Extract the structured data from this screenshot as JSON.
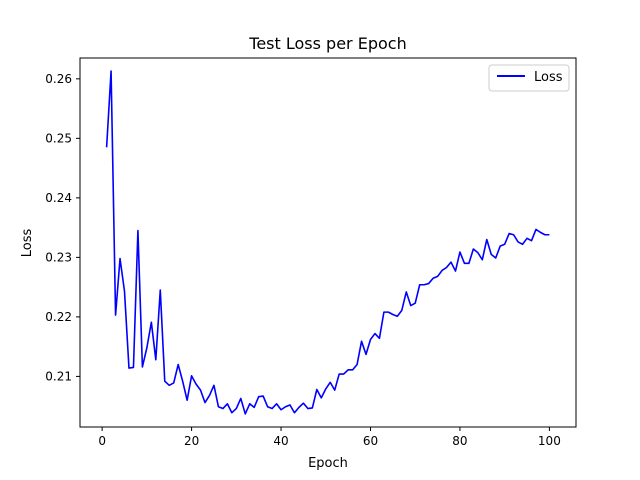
{
  "chart_data": {
    "type": "line",
    "title": "Test Loss per Epoch",
    "xlabel": "Epoch",
    "ylabel": "Loss",
    "xlim": [
      -4.95,
      105.95
    ],
    "ylim": [
      0.2015,
      0.2635
    ],
    "xticks": [
      0,
      20,
      40,
      60,
      80,
      100
    ],
    "yticks": [
      0.21,
      0.22,
      0.23,
      0.24,
      0.25,
      0.26
    ],
    "grid": false,
    "legend_position": "top-right",
    "series": [
      {
        "name": "Loss",
        "color": "#0000ff",
        "x": [
          1,
          2,
          3,
          4,
          5,
          6,
          7,
          8,
          9,
          10,
          11,
          12,
          13,
          14,
          15,
          16,
          17,
          18,
          19,
          20,
          21,
          22,
          23,
          24,
          25,
          26,
          27,
          28,
          29,
          30,
          31,
          32,
          33,
          34,
          35,
          36,
          37,
          38,
          39,
          40,
          41,
          42,
          43,
          44,
          45,
          46,
          47,
          48,
          49,
          50,
          51,
          52,
          53,
          54,
          55,
          56,
          57,
          58,
          59,
          60,
          61,
          62,
          63,
          64,
          65,
          66,
          67,
          68,
          69,
          70,
          71,
          72,
          73,
          74,
          75,
          76,
          77,
          78,
          79,
          80,
          81,
          82,
          83,
          84,
          85,
          86,
          87,
          88,
          89,
          90,
          91,
          92,
          93,
          94,
          95,
          96,
          97,
          98,
          99,
          100
        ],
        "values": [
          0.2485,
          0.2613,
          0.2203,
          0.2298,
          0.2243,
          0.2114,
          0.2115,
          0.2345,
          0.2116,
          0.2148,
          0.2191,
          0.2128,
          0.2245,
          0.2092,
          0.2085,
          0.2089,
          0.212,
          0.2092,
          0.206,
          0.2101,
          0.2087,
          0.2077,
          0.2056,
          0.2068,
          0.2085,
          0.2049,
          0.2046,
          0.2054,
          0.2039,
          0.2046,
          0.2063,
          0.2037,
          0.2054,
          0.2048,
          0.2066,
          0.2067,
          0.2049,
          0.2046,
          0.2054,
          0.2044,
          0.2049,
          0.2052,
          0.2039,
          0.2048,
          0.2055,
          0.2046,
          0.2047,
          0.2078,
          0.2064,
          0.2079,
          0.209,
          0.2077,
          0.2104,
          0.2104,
          0.2111,
          0.2111,
          0.212,
          0.2159,
          0.2137,
          0.2162,
          0.2172,
          0.2164,
          0.2208,
          0.2208,
          0.2204,
          0.2201,
          0.2211,
          0.2242,
          0.2219,
          0.2223,
          0.2254,
          0.2254,
          0.2256,
          0.2265,
          0.2268,
          0.2278,
          0.2283,
          0.2292,
          0.2277,
          0.2309,
          0.229,
          0.229,
          0.2314,
          0.2308,
          0.2296,
          0.233,
          0.2305,
          0.2299,
          0.2319,
          0.2322,
          0.234,
          0.2338,
          0.2326,
          0.2322,
          0.2332,
          0.2328,
          0.2347,
          0.2342,
          0.2338,
          0.2338
        ]
      }
    ]
  }
}
